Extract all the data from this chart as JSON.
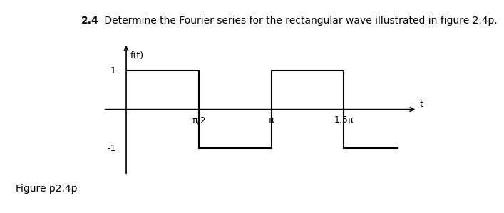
{
  "title_bold": "2.4",
  "title_normal": " Determine the Fourier series for the rectangular wave illustrated in figure 2.4p.",
  "ylabel": "f(t)",
  "xlabel": "t",
  "caption": "Figure p2.4p",
  "xtick_labels": [
    "π/2",
    "π",
    "1.5π"
  ],
  "xtick_values": [
    1.5707963,
    3.1415927,
    4.712389
  ],
  "ytick_labels": [
    "1",
    "-1"
  ],
  "ytick_values": [
    1,
    -1
  ],
  "wave_x": [
    0,
    0,
    1.5707963,
    1.5707963,
    3.1415927,
    3.1415927,
    4.712389,
    4.712389,
    5.9
  ],
  "wave_y": [
    1,
    1,
    1,
    -1,
    -1,
    1,
    1,
    -1,
    -1
  ],
  "xlim": [
    -0.5,
    6.3
  ],
  "ylim": [
    -1.7,
    1.7
  ],
  "axis_color": "black",
  "wave_color": "black",
  "background_color": "white",
  "linewidth": 1.5,
  "title_fontsize": 10,
  "tick_fontsize": 9,
  "caption_fontsize": 10
}
